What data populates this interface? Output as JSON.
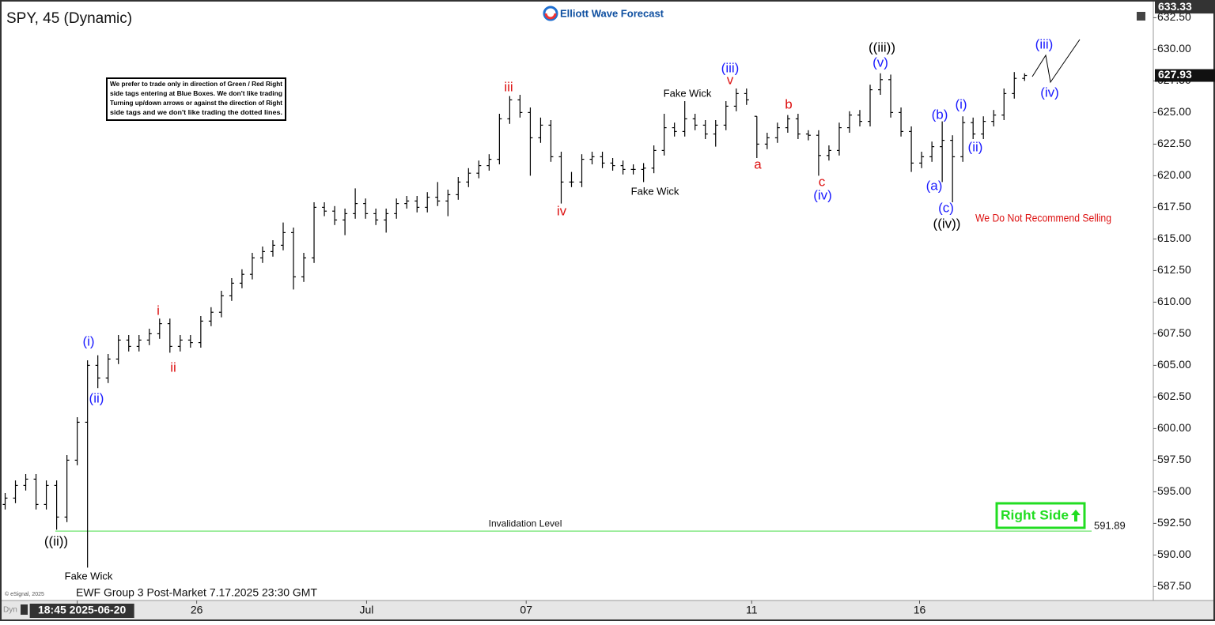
{
  "chart_data": {
    "type": "ohlc",
    "title": "SPY, 45 (Dynamic)",
    "brand": "Elliott Wave Forecast",
    "note": [
      "We prefer to trade only in direction of Green / Red Right",
      "side tags entering at Blue Boxes. We don't like trading",
      "Turning up/down arrows or against the direction of Right",
      "side tags and we don't like trading the dotted lines."
    ],
    "footer": "EWF Group 3 Post-Market 7.17.2025 23:30 GMT",
    "copyright": "© eSignal, 2025",
    "mode": "Dyn",
    "warning": "We Do Not Recommend Selling",
    "right_side": "Right Side",
    "color": "#000000",
    "ylim": [
      586.4,
      633.4
    ],
    "xlim": [
      -0.5,
      111.5
    ],
    "axis_top": 633.33,
    "last_price": 627.93,
    "invalidation": {
      "value": 591.89,
      "label": "Invalidation Level",
      "color": "#44dd44"
    },
    "yticks": [
      {
        "value": 587.5,
        "label": "587.50"
      },
      {
        "value": 590,
        "label": "590.00"
      },
      {
        "value": 592.5,
        "label": "592.50"
      },
      {
        "value": 595,
        "label": "595.00"
      },
      {
        "value": 597.5,
        "label": "597.50"
      },
      {
        "value": 600,
        "label": "600.00"
      },
      {
        "value": 602.5,
        "label": "602.50"
      },
      {
        "value": 605,
        "label": "605.00"
      },
      {
        "value": 607.5,
        "label": "607.50"
      },
      {
        "value": 610,
        "label": "610.00"
      },
      {
        "value": 612.5,
        "label": "612.50"
      },
      {
        "value": 615,
        "label": "615.00"
      },
      {
        "value": 617.5,
        "label": "617.50"
      },
      {
        "value": 620,
        "label": "620.00"
      },
      {
        "value": 622.5,
        "label": "622.50"
      },
      {
        "value": 625,
        "label": "625.00"
      },
      {
        "value": 627.5,
        "label": "627.50"
      },
      {
        "value": 630,
        "label": "630.00"
      },
      {
        "value": 632.5,
        "label": "632.50"
      }
    ],
    "xticks": [
      {
        "value": 7,
        "label": "18:45 2025-06-20"
      },
      {
        "value": 18.6,
        "label": "26"
      },
      {
        "value": 35.1,
        "label": "Jul"
      },
      {
        "value": 50.6,
        "label": "07"
      },
      {
        "value": 72.5,
        "label": "11"
      },
      {
        "value": 88.8,
        "label": "16"
      }
    ],
    "bars": [
      [
        594,
        594.9,
        593.6,
        594.5
      ],
      [
        594.5,
        595.9,
        594.1,
        595.5
      ],
      [
        595.5,
        596.4,
        595.1,
        596
      ],
      [
        596,
        596.4,
        593.6,
        594
      ],
      [
        594,
        595.9,
        593.6,
        595.5
      ],
      [
        595.5,
        595.9,
        592,
        593
      ],
      [
        593,
        597.9,
        592.6,
        597.5
      ],
      [
        597.5,
        600.9,
        597.1,
        600.5
      ],
      [
        600.5,
        605.4,
        589,
        605
      ],
      [
        605,
        605.8,
        603.2,
        604
      ],
      [
        604,
        605.9,
        603.6,
        605.5
      ],
      [
        605.5,
        607.4,
        605.1,
        607
      ],
      [
        607,
        607.4,
        606.1,
        606.5
      ],
      [
        606.5,
        607.4,
        606.1,
        607
      ],
      [
        607,
        607.9,
        606.6,
        607.5
      ],
      [
        607.5,
        608.7,
        607.1,
        608.3
      ],
      [
        608.3,
        608.7,
        606,
        606.5
      ],
      [
        606.5,
        607.4,
        606.1,
        607
      ],
      [
        607,
        607.4,
        606.4,
        606.8
      ],
      [
        606.8,
        608.9,
        606.4,
        608.5
      ],
      [
        608.5,
        609.6,
        608.1,
        609.2
      ],
      [
        609.2,
        610.9,
        608.8,
        610.5
      ],
      [
        610.5,
        611.9,
        610.1,
        611.5
      ],
      [
        611.5,
        612.6,
        611.1,
        612.2
      ],
      [
        612.2,
        613.9,
        611.8,
        613.5
      ],
      [
        613.5,
        614.4,
        613.1,
        614
      ],
      [
        614,
        614.9,
        613.6,
        614.5
      ],
      [
        614.5,
        616.3,
        614.1,
        615.5
      ],
      [
        615.5,
        615.9,
        611,
        612
      ],
      [
        612,
        613.9,
        611.6,
        613.5
      ],
      [
        613.5,
        617.9,
        613.1,
        617.5
      ],
      [
        617.5,
        617.9,
        616.8,
        617.2
      ],
      [
        617.2,
        617.6,
        616.1,
        616.5
      ],
      [
        616.5,
        617.4,
        615.3,
        617
      ],
      [
        617,
        619,
        616.6,
        617.8
      ],
      [
        617.8,
        618.2,
        616.6,
        617
      ],
      [
        617,
        617.4,
        616.1,
        616.5
      ],
      [
        616.5,
        617.4,
        615.5,
        617
      ],
      [
        617,
        618.2,
        616.6,
        617.8
      ],
      [
        617.8,
        618.4,
        617.4,
        618
      ],
      [
        618,
        618.4,
        617.1,
        617.5
      ],
      [
        617.5,
        618.7,
        617.1,
        618.3
      ],
      [
        618.3,
        619.5,
        617.6,
        618
      ],
      [
        618,
        618.9,
        616.8,
        618.5
      ],
      [
        618.5,
        619.9,
        618.1,
        619.5
      ],
      [
        619.5,
        620.6,
        619.1,
        620.2
      ],
      [
        620.2,
        621.2,
        619.8,
        620.8
      ],
      [
        620.8,
        621.7,
        620.4,
        621.3
      ],
      [
        621.3,
        624.9,
        620.9,
        624.5
      ],
      [
        624.5,
        626.3,
        624.1,
        626
      ],
      [
        626,
        626.4,
        624.6,
        625
      ],
      [
        625,
        625.4,
        620,
        623
      ],
      [
        623,
        624.6,
        622.6,
        624
      ],
      [
        624,
        624.4,
        621.1,
        621.5
      ],
      [
        621.5,
        621.9,
        617.8,
        619.5
      ],
      [
        619.5,
        620.3,
        619.1,
        619.5
      ],
      [
        619.5,
        621.7,
        619.1,
        621.3
      ],
      [
        621.3,
        621.9,
        620.9,
        621.5
      ],
      [
        621.5,
        621.9,
        620.6,
        621
      ],
      [
        621,
        621.4,
        620.4,
        620.8
      ],
      [
        620.8,
        621.2,
        620.1,
        620.5
      ],
      [
        620.5,
        620.9,
        620.1,
        620.5
      ],
      [
        620.5,
        621,
        619.5,
        620.6
      ],
      [
        620.6,
        622.4,
        620.2,
        622
      ],
      [
        622,
        624.9,
        621.6,
        623.8
      ],
      [
        623.8,
        624.2,
        623.1,
        623.5
      ],
      [
        623.5,
        625.9,
        623.1,
        624.5
      ],
      [
        624.5,
        624.9,
        623.6,
        624
      ],
      [
        624,
        624.4,
        622.9,
        623.3
      ],
      [
        623.3,
        624.4,
        622.3,
        624
      ],
      [
        624,
        625.9,
        623.6,
        625.5
      ],
      [
        625.5,
        626.9,
        625.1,
        626.5
      ],
      [
        626.5,
        626.9,
        625.6,
        626
      ],
      [
        624.7,
        624.7,
        621.4,
        622.5
      ],
      [
        622.5,
        623.4,
        622.1,
        623
      ],
      [
        623,
        624.2,
        622.6,
        623.8
      ],
      [
        623.8,
        624.8,
        623.4,
        624.5
      ],
      [
        624.5,
        624.9,
        622.9,
        623.3
      ],
      [
        623.3,
        623.6,
        622.8,
        623.2
      ],
      [
        623.2,
        623.6,
        620,
        621.6
      ],
      [
        621.6,
        622.4,
        621.2,
        622
      ],
      [
        622,
        624.2,
        621.6,
        623.8
      ],
      [
        623.8,
        625.1,
        623.4,
        624.8
      ],
      [
        624.8,
        625.2,
        623.9,
        624.3
      ],
      [
        624.3,
        627.2,
        623.9,
        626.8
      ],
      [
        626.8,
        628.1,
        626.4,
        627.6
      ],
      [
        627.6,
        628,
        624.6,
        625
      ],
      [
        625,
        625.4,
        623.1,
        623.5
      ],
      [
        623.5,
        623.9,
        620.3,
        621
      ],
      [
        621,
        621.9,
        620.6,
        621.5
      ],
      [
        621.5,
        622.7,
        621.1,
        622.3
      ],
      [
        622.3,
        624.3,
        619.5,
        622.8
      ],
      [
        622.8,
        623.2,
        617.9,
        621.5
      ],
      [
        621.5,
        624.7,
        621.1,
        624.2
      ],
      [
        624.2,
        624.6,
        622.9,
        623.3
      ],
      [
        623.3,
        624.7,
        622.9,
        624.3
      ],
      [
        624.3,
        625.2,
        623.9,
        624.8
      ],
      [
        624.8,
        626.9,
        624.4,
        626.5
      ],
      [
        626.5,
        628.2,
        626.1,
        627.7
      ],
      [
        627.7,
        628.1,
        627.5,
        627.93
      ]
    ],
    "annotations": [
      {
        "text": "((ii))",
        "color": "#000000"
      },
      {
        "text": "Fake Wick",
        "color": "#000000"
      },
      {
        "text": "(i)",
        "color": "#1a1aff"
      },
      {
        "text": "(ii)",
        "color": "#1a1aff"
      },
      {
        "text": "i",
        "color": "#dd1111"
      },
      {
        "text": "ii",
        "color": "#dd1111"
      },
      {
        "text": "iii",
        "color": "#dd1111"
      },
      {
        "text": "iv",
        "color": "#dd1111"
      },
      {
        "text": "Fake Wick",
        "color": "#000000"
      },
      {
        "text": "Fake Wick",
        "color": "#000000"
      },
      {
        "text": "(iii)",
        "color": "#1a1aff"
      },
      {
        "text": "v",
        "color": "#dd1111"
      },
      {
        "text": "a",
        "color": "#dd1111"
      },
      {
        "text": "b",
        "color": "#dd1111"
      },
      {
        "text": "c",
        "color": "#dd1111"
      },
      {
        "text": "(iv)",
        "color": "#1a1aff"
      },
      {
        "text": "((iii))",
        "color": "#000000"
      },
      {
        "text": "(v)",
        "color": "#1a1aff"
      },
      {
        "text": "(b)",
        "color": "#1a1aff"
      },
      {
        "text": "(a)",
        "color": "#1a1aff"
      },
      {
        "text": "(c)",
        "color": "#1a1aff"
      },
      {
        "text": "((iv))",
        "color": "#000000"
      },
      {
        "text": "(i)",
        "color": "#1a1aff"
      },
      {
        "text": "(ii)",
        "color": "#1a1aff"
      },
      {
        "text": "(iii)",
        "color": "#1a1aff"
      },
      {
        "text": "(iv)",
        "color": "#1a1aff"
      }
    ]
  }
}
